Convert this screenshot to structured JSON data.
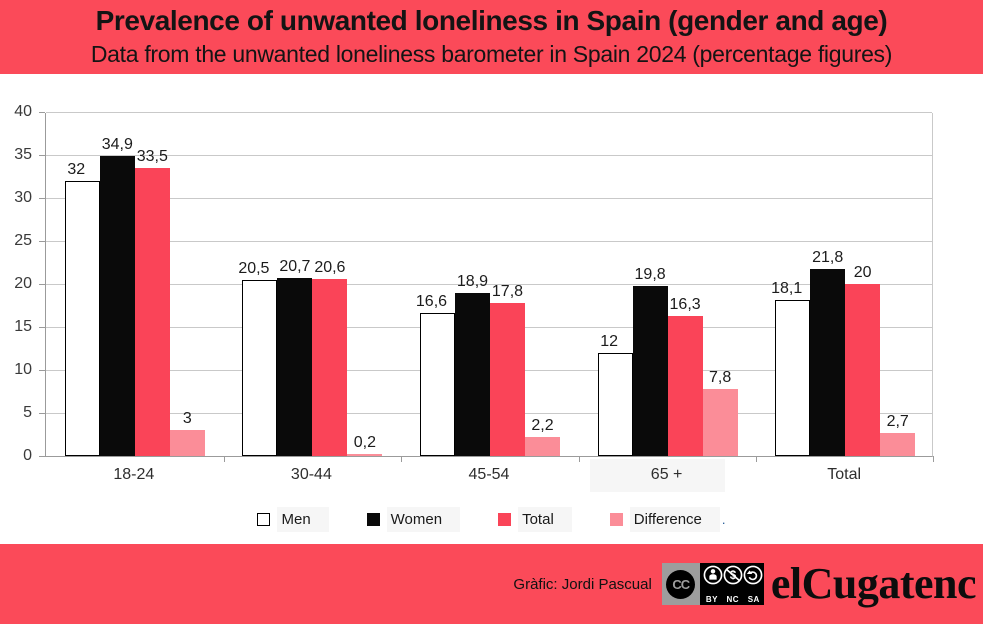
{
  "theme": {
    "accent": "#fb4a59",
    "chart_background": "#ffffff",
    "grid_color": "#c9c9c9",
    "axis_color": "#9b9b9b"
  },
  "header": {
    "title": "Prevalence of unwanted loneliness in Spain (gender and age)",
    "subtitle": "Data from the unwanted loneliness barometer in Spain 2024 (percentage figures)"
  },
  "chart_data": {
    "type": "bar",
    "title": "Prevalence of unwanted loneliness in Spain (gender and age)",
    "subtitle": "Data from the unwanted loneliness barometer in Spain 2024 (percentage figures)",
    "categories": [
      "18-24",
      "30-44",
      "45-54",
      "65 +",
      "Total"
    ],
    "series": [
      {
        "name": "Men",
        "color": "#ffffff",
        "border_color": "#000000",
        "values": [
          32,
          20.5,
          16.6,
          12,
          18.1
        ],
        "value_labels": [
          "32",
          "20,5",
          "16,6",
          "12",
          "18,1"
        ]
      },
      {
        "name": "Women",
        "color": "#0a0a0a",
        "values": [
          34.9,
          20.7,
          18.9,
          19.8,
          21.8
        ],
        "value_labels": [
          "34,9",
          "20,7",
          "18,9",
          "19,8",
          "21,8"
        ]
      },
      {
        "name": "Total",
        "color": "#fa4458",
        "values": [
          33.5,
          20.6,
          17.8,
          16.3,
          20
        ],
        "value_labels": [
          "33,5",
          "20,6",
          "17,8",
          "16,3",
          "20"
        ]
      },
      {
        "name": "Difference",
        "color": "#fb8d98",
        "values": [
          3,
          0.2,
          2.2,
          7.8,
          2.7
        ],
        "value_labels": [
          "3",
          "0,2",
          "2,2",
          "7,8",
          "2,7"
        ]
      }
    ],
    "xlabel": "",
    "ylabel": "",
    "ylim": [
      0,
      40
    ],
    "yticks": [
      0,
      5,
      10,
      15,
      20,
      25,
      30,
      35,
      40
    ],
    "grid": true,
    "legend_position": "bottom",
    "legend_trailing_mark": "."
  },
  "footer": {
    "credit": "Gràfic: Jordi Pascual",
    "license": {
      "cc": "CC",
      "parts": [
        "BY",
        "NC",
        "SA"
      ]
    },
    "logo": "elCugatenc"
  }
}
